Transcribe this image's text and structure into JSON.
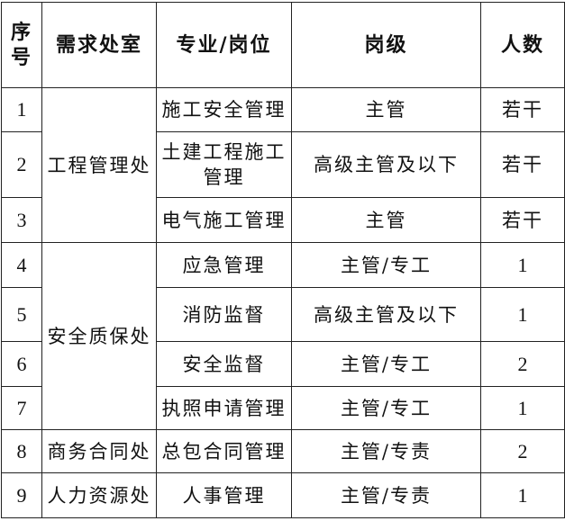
{
  "headers": {
    "seq": "序号",
    "dept": "需求处室",
    "position": "专业/岗位",
    "level": "岗级",
    "count": "人数"
  },
  "groups": {
    "g1": "工程管理处",
    "g2": "安全质保处",
    "g3": "商务合同处",
    "g4": "人力资源处"
  },
  "rows": [
    {
      "seq": "1",
      "position": "施工安全管理",
      "level": "主管",
      "count": "若干"
    },
    {
      "seq": "2",
      "position": "土建工程施工管理",
      "level": "高级主管及以下",
      "count": "若干"
    },
    {
      "seq": "3",
      "position": "电气施工管理",
      "level": "主管",
      "count": "若干"
    },
    {
      "seq": "4",
      "position": "应急管理",
      "level": "主管/专工",
      "count": "1"
    },
    {
      "seq": "5",
      "position": "消防监督",
      "level": "高级主管及以下",
      "count": "1"
    },
    {
      "seq": "6",
      "position": "安全监督",
      "level": "主管/专工",
      "count": "2"
    },
    {
      "seq": "7",
      "position": "执照申请管理",
      "level": "主管/专工",
      "count": "1"
    },
    {
      "seq": "8",
      "position": "总包合同管理",
      "level": "主管/专责",
      "count": "2"
    },
    {
      "seq": "9",
      "position": "人事管理",
      "level": "主管/专责",
      "count": "1"
    }
  ]
}
